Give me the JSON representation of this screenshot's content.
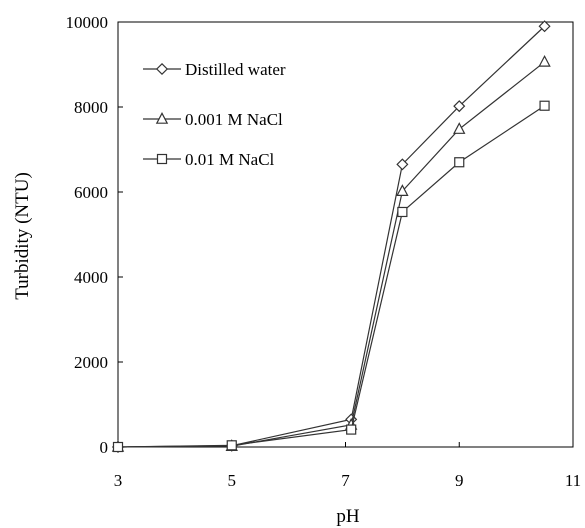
{
  "chart_data": {
    "type": "line",
    "xlabel": "pH",
    "ylabel": "Turbidity (NTU)",
    "xlim": [
      3,
      11
    ],
    "ylim": [
      0,
      10000
    ],
    "xticks": [
      "3",
      "5",
      "7",
      "9",
      "11"
    ],
    "yticks": [
      "0",
      "2000",
      "4000",
      "6000",
      "8000",
      "10000"
    ],
    "x": [
      3,
      5,
      7.1,
      8,
      9,
      10.5
    ],
    "legend_position": "top-left",
    "grid": false,
    "series": [
      {
        "name": "Distilled water",
        "marker": "diamond",
        "values": [
          0,
          30,
          650,
          6650,
          8020,
          9900
        ]
      },
      {
        "name": "0.001 M NaCl",
        "marker": "triangle",
        "values": [
          0,
          20,
          520,
          6020,
          7480,
          9060
        ]
      },
      {
        "name": "0.01 M NaCl",
        "marker": "square",
        "values": [
          0,
          40,
          410,
          5530,
          6700,
          8030
        ]
      }
    ]
  }
}
